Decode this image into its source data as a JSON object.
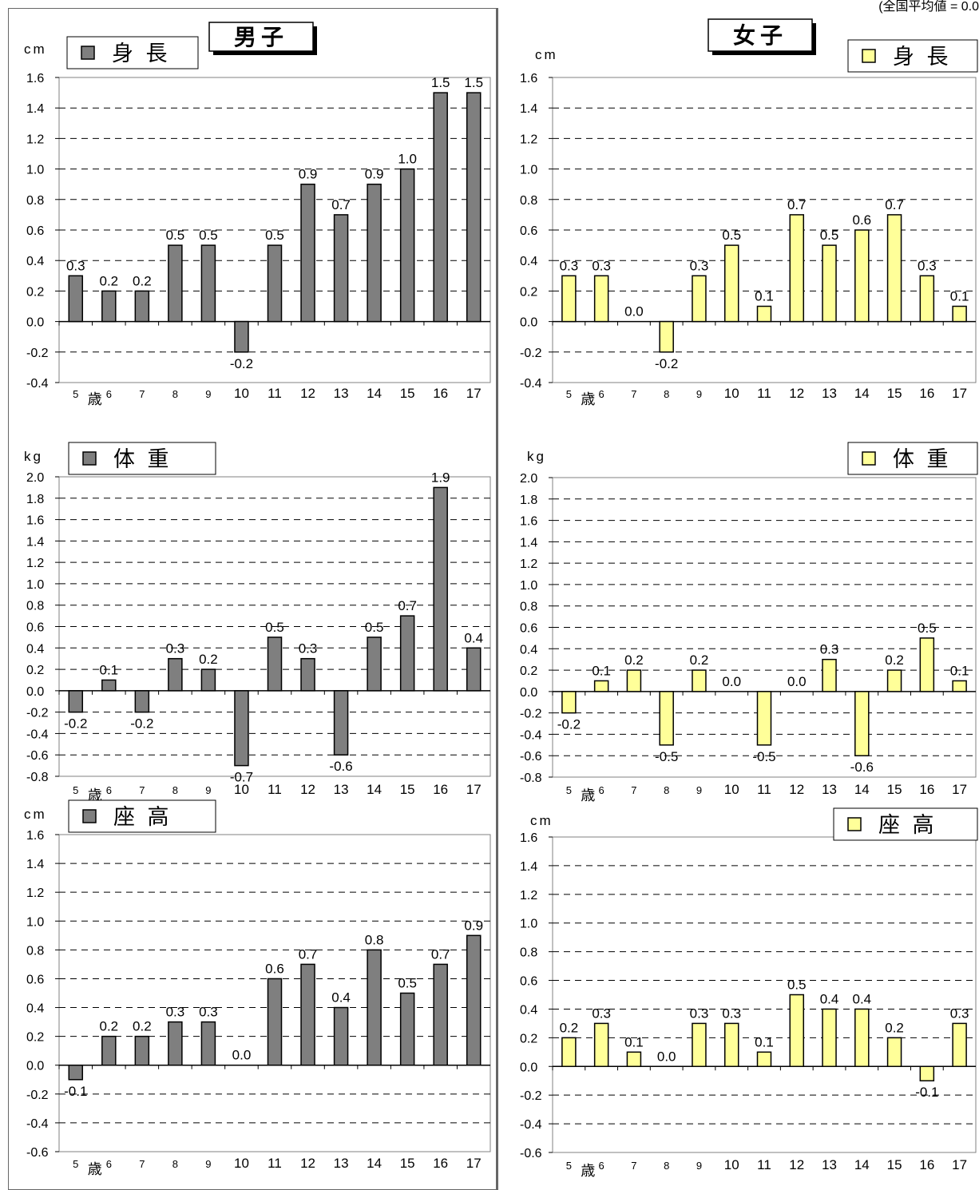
{
  "caption": "(全国平均値 = 0.0",
  "categories": [
    "5",
    "6",
    "7",
    "8",
    "9",
    "10",
    "11",
    "12",
    "13",
    "14",
    "15",
    "16",
    "17"
  ],
  "age_suffix": "歳",
  "colors": {
    "boys_bar": "#7f7f7f",
    "girls_bar": "#ffff99",
    "bar_stroke": "#000000",
    "grid": "#000000",
    "frame": "#808080"
  },
  "boys": {
    "title": "男子",
    "height": {
      "legend": "身 長",
      "unit": "cm"
    },
    "weight": {
      "legend": "体 重",
      "unit": "kg"
    },
    "sitting": {
      "legend": "座 高",
      "unit": "cm"
    }
  },
  "girls": {
    "title": "女子",
    "height": {
      "legend": "身 長",
      "unit": "cm"
    },
    "weight": {
      "legend": "体 重",
      "unit": "kg"
    },
    "sitting": {
      "legend": "座 高",
      "unit": "cm"
    }
  },
  "chart_data": [
    {
      "type": "bar",
      "id": "boys-height",
      "group": "男子",
      "legend": "身 長",
      "ylabel": "cm",
      "categories": [
        "5",
        "6",
        "7",
        "8",
        "9",
        "10",
        "11",
        "12",
        "13",
        "14",
        "15",
        "16",
        "17"
      ],
      "values": [
        0.3,
        0.2,
        0.2,
        0.5,
        0.5,
        -0.2,
        0.5,
        0.9,
        0.7,
        0.9,
        1.0,
        1.5,
        1.5
      ],
      "ylim": [
        -0.4,
        1.6
      ],
      "ystep": 0.2,
      "grid": true,
      "legend_position": "top-left",
      "color": "#7f7f7f"
    },
    {
      "type": "bar",
      "id": "girls-height",
      "group": "女子",
      "legend": "身 長",
      "ylabel": "cm",
      "categories": [
        "5",
        "6",
        "7",
        "8",
        "9",
        "10",
        "11",
        "12",
        "13",
        "14",
        "15",
        "16",
        "17"
      ],
      "values": [
        0.3,
        0.3,
        0.0,
        -0.2,
        0.3,
        0.5,
        0.1,
        0.7,
        0.5,
        0.6,
        0.7,
        0.3,
        0.1
      ],
      "ylim": [
        -0.4,
        1.6
      ],
      "ystep": 0.2,
      "grid": true,
      "legend_position": "top-right",
      "color": "#ffff99"
    },
    {
      "type": "bar",
      "id": "boys-weight",
      "group": "男子",
      "legend": "体 重",
      "ylabel": "kg",
      "categories": [
        "5",
        "6",
        "7",
        "8",
        "9",
        "10",
        "11",
        "12",
        "13",
        "14",
        "15",
        "16",
        "17"
      ],
      "values": [
        -0.2,
        0.1,
        -0.2,
        0.3,
        0.2,
        -0.7,
        0.5,
        0.3,
        -0.6,
        0.5,
        0.7,
        1.9,
        0.4
      ],
      "ylim": [
        -0.8,
        2.0
      ],
      "ystep": 0.2,
      "grid": true,
      "legend_position": "top-left",
      "color": "#7f7f7f"
    },
    {
      "type": "bar",
      "id": "girls-weight",
      "group": "女子",
      "legend": "体 重",
      "ylabel": "kg",
      "categories": [
        "5",
        "6",
        "7",
        "8",
        "9",
        "10",
        "11",
        "12",
        "13",
        "14",
        "15",
        "16",
        "17"
      ],
      "values": [
        -0.2,
        0.1,
        0.2,
        -0.5,
        0.2,
        0.0,
        -0.5,
        0.0,
        0.3,
        -0.6,
        0.2,
        0.5,
        0.1
      ],
      "ylim": [
        -0.8,
        2.0
      ],
      "ystep": 0.2,
      "grid": true,
      "legend_position": "top-right",
      "color": "#ffff99"
    },
    {
      "type": "bar",
      "id": "boys-sitting",
      "group": "男子",
      "legend": "座 高",
      "ylabel": "cm",
      "categories": [
        "5",
        "6",
        "7",
        "8",
        "9",
        "10",
        "11",
        "12",
        "13",
        "14",
        "15",
        "16",
        "17"
      ],
      "values": [
        -0.1,
        0.2,
        0.2,
        0.3,
        0.3,
        0.0,
        0.6,
        0.7,
        0.4,
        0.8,
        0.5,
        0.7,
        0.9
      ],
      "ylim": [
        -0.6,
        1.6
      ],
      "ystep": 0.2,
      "grid": true,
      "legend_position": "top-left",
      "color": "#7f7f7f"
    },
    {
      "type": "bar",
      "id": "girls-sitting",
      "group": "女子",
      "legend": "座 高",
      "ylabel": "cm",
      "categories": [
        "5",
        "6",
        "7",
        "8",
        "9",
        "10",
        "11",
        "12",
        "13",
        "14",
        "15",
        "16",
        "17"
      ],
      "values": [
        0.2,
        0.3,
        0.1,
        0.0,
        0.3,
        0.3,
        0.1,
        0.5,
        0.4,
        0.4,
        0.2,
        -0.1,
        0.3
      ],
      "ylim": [
        -0.6,
        1.6
      ],
      "ystep": 0.2,
      "grid": true,
      "legend_position": "top-right",
      "color": "#ffff99"
    }
  ]
}
